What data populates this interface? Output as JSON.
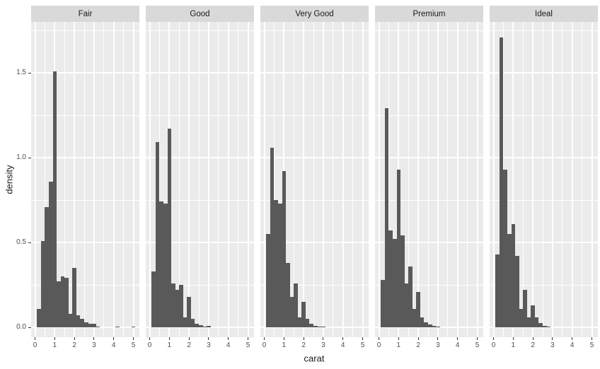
{
  "figure": {
    "xlabel": "carat",
    "ylabel": "density",
    "colors": {
      "bar_fill": "#595959",
      "panel_background": "#ebebeb",
      "strip_background": "#d9d9d9",
      "gridline": "#ffffff",
      "tick_text": "#4d4d4d",
      "title_text": "#1a1a1a",
      "tick_mark": "#333333"
    }
  },
  "chart_data": {
    "type": "bar",
    "subtype": "faceted-density-histogram",
    "title": "",
    "xlabel": "carat",
    "ylabel": "density",
    "binwidth": 0.2,
    "xlim": [
      -0.2,
      5.3
    ],
    "ylim": [
      0,
      1.8
    ],
    "grid": "on",
    "legend": "none",
    "x_ticks": [
      0,
      1,
      2,
      3,
      4,
      5
    ],
    "x_tick_labels": [
      "0",
      "1",
      "2",
      "3",
      "4",
      "5"
    ],
    "x_minor_ticks": [
      0.5,
      1.5,
      2.5,
      3.5,
      4.5
    ],
    "y_ticks": [
      0,
      0.5,
      1.0,
      1.5
    ],
    "y_tick_labels": [
      "0.0",
      "0.5",
      "1.0",
      "1.5"
    ],
    "y_minor_ticks": [
      0.25,
      0.75,
      1.25,
      1.75
    ],
    "facets": [
      {
        "label": "Fair",
        "bins": [
          [
            0.2,
            0.11
          ],
          [
            0.4,
            0.51
          ],
          [
            0.6,
            0.71
          ],
          [
            0.8,
            0.86
          ],
          [
            1.0,
            1.51
          ],
          [
            1.2,
            0.27
          ],
          [
            1.4,
            0.3
          ],
          [
            1.6,
            0.29
          ],
          [
            1.8,
            0.08
          ],
          [
            2.0,
            0.35
          ],
          [
            2.2,
            0.07
          ],
          [
            2.4,
            0.05
          ],
          [
            2.6,
            0.03
          ],
          [
            2.8,
            0.02
          ],
          [
            3.0,
            0.02
          ],
          [
            3.2,
            0.006
          ],
          [
            4.2,
            0.005
          ],
          [
            5.0,
            0.005
          ]
        ]
      },
      {
        "label": "Good",
        "bins": [
          [
            0.2,
            0.33
          ],
          [
            0.4,
            1.09
          ],
          [
            0.6,
            0.74
          ],
          [
            0.8,
            0.73
          ],
          [
            1.0,
            1.17
          ],
          [
            1.2,
            0.26
          ],
          [
            1.4,
            0.22
          ],
          [
            1.6,
            0.25
          ],
          [
            1.8,
            0.06
          ],
          [
            2.0,
            0.18
          ],
          [
            2.2,
            0.05
          ],
          [
            2.4,
            0.02
          ],
          [
            2.6,
            0.012
          ],
          [
            2.8,
            0.006
          ],
          [
            3.0,
            0.008
          ]
        ]
      },
      {
        "label": "Very Good",
        "bins": [
          [
            0.2,
            0.55
          ],
          [
            0.4,
            1.06
          ],
          [
            0.6,
            0.75
          ],
          [
            0.8,
            0.73
          ],
          [
            1.0,
            0.92
          ],
          [
            1.2,
            0.38
          ],
          [
            1.4,
            0.18
          ],
          [
            1.6,
            0.26
          ],
          [
            1.8,
            0.06
          ],
          [
            2.0,
            0.15
          ],
          [
            2.2,
            0.05
          ],
          [
            2.4,
            0.02
          ],
          [
            2.6,
            0.01
          ],
          [
            2.8,
            0.006
          ],
          [
            3.0,
            0.004
          ]
        ]
      },
      {
        "label": "Premium",
        "bins": [
          [
            0.2,
            0.28
          ],
          [
            0.4,
            1.29
          ],
          [
            0.6,
            0.57
          ],
          [
            0.8,
            0.52
          ],
          [
            1.0,
            0.93
          ],
          [
            1.2,
            0.54
          ],
          [
            1.4,
            0.26
          ],
          [
            1.6,
            0.36
          ],
          [
            1.8,
            0.11
          ],
          [
            2.0,
            0.21
          ],
          [
            2.2,
            0.06
          ],
          [
            2.4,
            0.03
          ],
          [
            2.6,
            0.015
          ],
          [
            2.8,
            0.008
          ],
          [
            3.0,
            0.006
          ]
        ]
      },
      {
        "label": "Ideal",
        "bins": [
          [
            0.2,
            0.43
          ],
          [
            0.4,
            1.71
          ],
          [
            0.6,
            0.93
          ],
          [
            0.8,
            0.55
          ],
          [
            1.0,
            0.61
          ],
          [
            1.2,
            0.42
          ],
          [
            1.4,
            0.11
          ],
          [
            1.6,
            0.22
          ],
          [
            1.8,
            0.06
          ],
          [
            2.0,
            0.13
          ],
          [
            2.2,
            0.06
          ],
          [
            2.4,
            0.025
          ],
          [
            2.6,
            0.01
          ],
          [
            2.8,
            0.005
          ]
        ]
      }
    ]
  }
}
